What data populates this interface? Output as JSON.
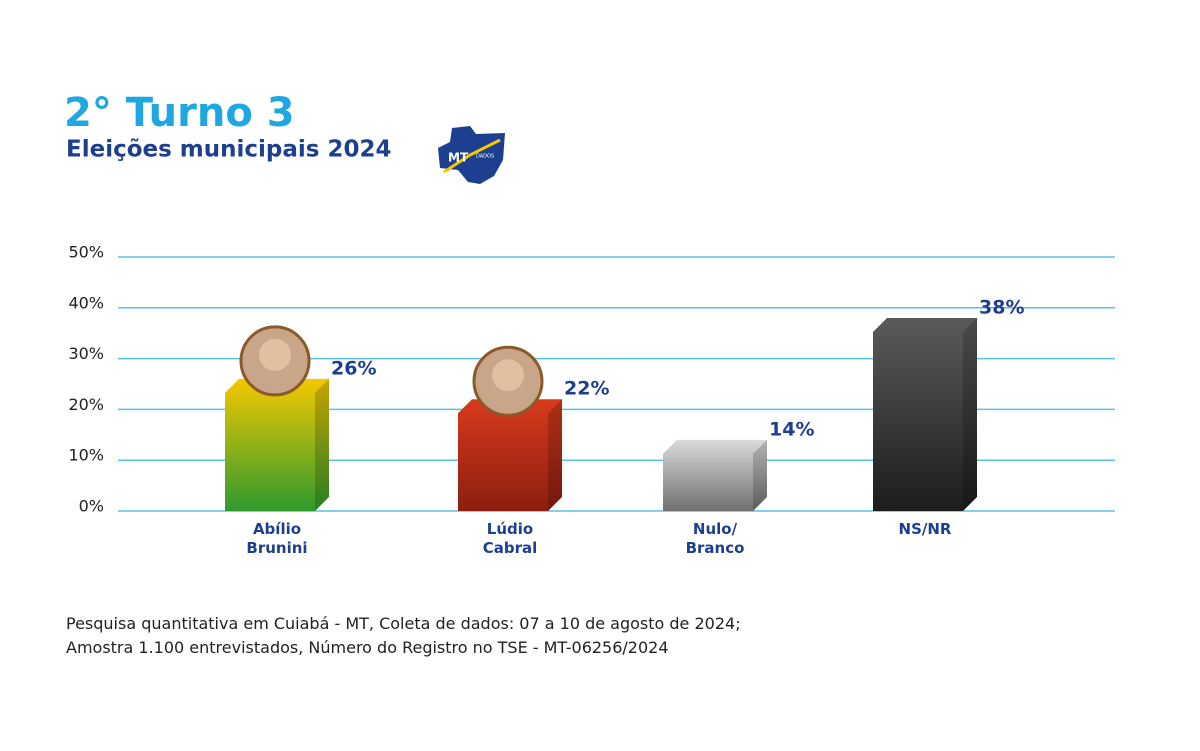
{
  "chart_data": {
    "type": "bar3d",
    "title": "2° Turno 3",
    "subtitle": "Eleições municipais 2024",
    "logo": {
      "text": "MT",
      "subtext": "DADOS"
    },
    "categories": [
      "Abílio Brunini",
      "Lúdio Cabral",
      "Nulo/ Branco",
      "NS/NR"
    ],
    "values": [
      26,
      22,
      14,
      38
    ],
    "value_labels": [
      "26%",
      "22%",
      "14%",
      "38%"
    ],
    "colors": [
      [
        "#f5c800",
        "#2e9a2e"
      ],
      [
        "#d83a1c",
        "#8c1e10"
      ],
      [
        "#dadada",
        "#707070"
      ],
      [
        "#5a5a5a",
        "#1c1c1c"
      ]
    ],
    "photos": [
      true,
      true,
      false,
      false
    ],
    "ylim": [
      0,
      50
    ],
    "yticks": [
      {
        "value": 0,
        "label": "0%"
      },
      {
        "value": 10,
        "label": "10%"
      },
      {
        "value": 20,
        "label": "20%"
      },
      {
        "value": 30,
        "label": "30%"
      },
      {
        "value": 40,
        "label": "40%"
      },
      {
        "value": 50,
        "label": "50%"
      }
    ],
    "grid": true,
    "notes": [
      "Pesquisa quantitativa em Cuiabá - MT, Coleta de dados: 07 a 10 de agosto de 2024;",
      "Amostra 1.100 entrevistados, Número do Registro no TSE - MT-06256/2024"
    ]
  }
}
